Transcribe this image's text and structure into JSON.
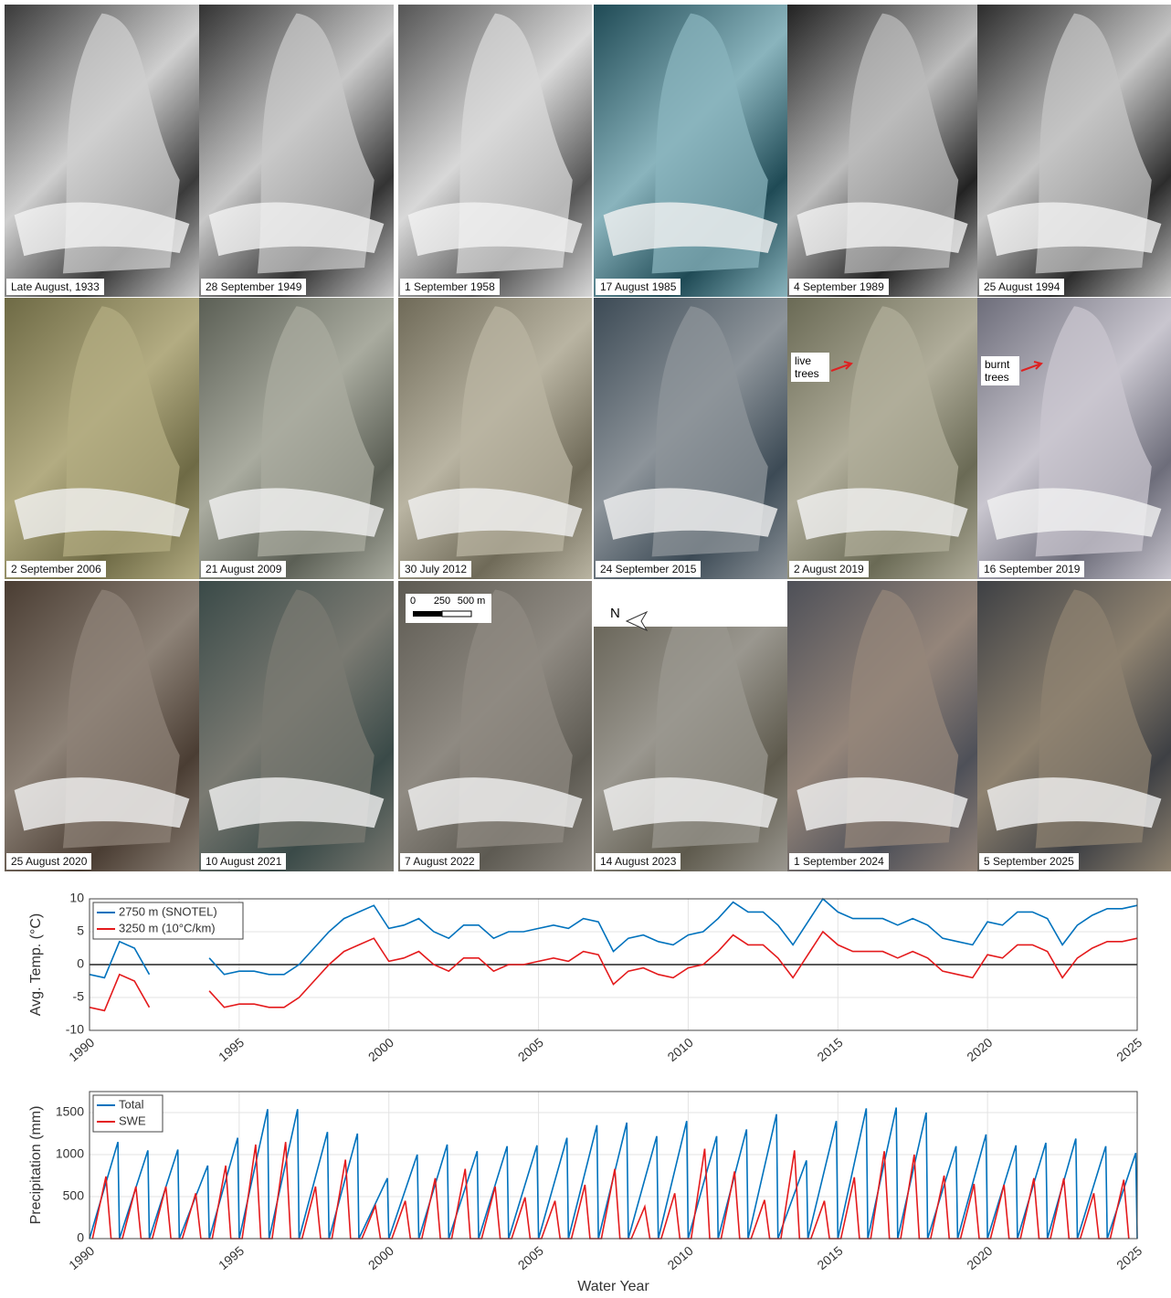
{
  "photos": [
    {
      "caption": "Late August, 1933"
    },
    {
      "caption": "28 September 1949"
    },
    {
      "caption": "1 September 1958"
    },
    {
      "caption": "17 August 1985"
    },
    {
      "caption": "4 September 1989"
    },
    {
      "caption": "25 August 1994"
    },
    {
      "caption": "2 September 2006"
    },
    {
      "caption": "21 August 2009"
    },
    {
      "caption": "30 July 2012"
    },
    {
      "caption": "24 September 2015"
    },
    {
      "caption": "2 August 2019"
    },
    {
      "caption": "16 September 2019"
    },
    {
      "caption": "25 August 2020"
    },
    {
      "caption": "10 August 2021"
    },
    {
      "caption": "7 August 2022"
    },
    {
      "caption": "14 August 2023"
    },
    {
      "caption": "1 September 2024"
    },
    {
      "caption": "5 September 2025"
    }
  ],
  "annotations": {
    "live_trees": "live trees",
    "burnt_trees": "burnt trees",
    "scale_bar": [
      "0",
      "250",
      "500 m"
    ],
    "north": "N"
  },
  "chart_data": [
    {
      "type": "line",
      "ylabel": "Avg. Temp. (°C)",
      "xlim": [
        1990,
        2025
      ],
      "xticks": [
        1990,
        1995,
        2000,
        2005,
        2010,
        2015,
        2020,
        2025
      ],
      "ylim": [
        -10,
        10
      ],
      "yticks": [
        -10,
        -5,
        0,
        5,
        10
      ],
      "grid": true,
      "legend": "upper left",
      "reference_line": 0,
      "x": [
        1990,
        1990.5,
        1991,
        1991.5,
        1992,
        1992.5,
        1993,
        1993.5,
        1994,
        1994.5,
        1995,
        1995.5,
        1996,
        1996.5,
        1997,
        1997.5,
        1998,
        1998.5,
        1999,
        1999.5,
        2000,
        2000.5,
        2001,
        2001.5,
        2002,
        2002.5,
        2003,
        2003.5,
        2004,
        2004.5,
        2005,
        2005.5,
        2006,
        2006.5,
        2007,
        2007.5,
        2008,
        2008.5,
        2009,
        2009.5,
        2010,
        2010.5,
        2011,
        2011.5,
        2012,
        2012.5,
        2013,
        2013.5,
        2014,
        2014.5,
        2015,
        2015.5,
        2016,
        2016.5,
        2017,
        2017.5,
        2018,
        2018.5,
        2019,
        2019.5,
        2020,
        2020.5,
        2021,
        2021.5,
        2022,
        2022.5,
        2023,
        2023.5,
        2024,
        2024.5,
        2025
      ],
      "series": [
        {
          "name": "2750 m (SNOTEL)",
          "color": "#0072bd",
          "values": [
            -1.5,
            -2,
            3.5,
            2.5,
            -1.5,
            null,
            null,
            null,
            1,
            -1.5,
            -1,
            -1,
            -1.5,
            -1.5,
            0,
            2.5,
            5,
            7,
            8,
            9,
            5.5,
            6,
            7,
            5,
            4,
            6,
            6,
            4,
            5,
            5,
            5.5,
            6,
            5.5,
            7,
            6.5,
            2,
            4,
            4.5,
            3.5,
            3,
            4.5,
            5,
            7,
            9.5,
            8,
            8,
            6,
            3,
            6.5,
            10,
            8,
            7,
            7,
            7,
            6,
            7,
            6,
            4,
            3.5,
            3,
            6.5,
            6,
            8,
            8,
            7,
            3,
            6,
            7.5,
            8.5,
            8.5,
            9
          ]
        },
        {
          "name": "3250 m (10°C/km)",
          "color": "#e41a1c",
          "values": [
            -6.5,
            -7,
            -1.5,
            -2.5,
            -6.5,
            null,
            null,
            null,
            -4,
            -6.5,
            -6,
            -6,
            -6.5,
            -6.5,
            -5,
            -2.5,
            0,
            2,
            3,
            4,
            0.5,
            1,
            2,
            0,
            -1,
            1,
            1,
            -1,
            0,
            0,
            0.5,
            1,
            0.5,
            2,
            1.5,
            -3,
            -1,
            -0.5,
            -1.5,
            -2,
            -0.5,
            0,
            2,
            4.5,
            3,
            3,
            1,
            -2,
            1.5,
            5,
            3,
            2,
            2,
            2,
            1,
            2,
            1,
            -1,
            -1.5,
            -2,
            1.5,
            1,
            3,
            3,
            2,
            -2,
            1,
            2.5,
            3.5,
            3.5,
            4
          ]
        }
      ]
    },
    {
      "type": "line",
      "ylabel": "Precipitation (mm)",
      "xlabel": "Water Year",
      "xlim": [
        1990,
        2025
      ],
      "xticks": [
        1990,
        1995,
        2000,
        2005,
        2010,
        2015,
        2020,
        2025
      ],
      "ylim": [
        0,
        1750
      ],
      "yticks": [
        0,
        500,
        1000,
        1500
      ],
      "grid": true,
      "legend": "upper left",
      "series": [
        {
          "name": "Total",
          "color": "#0072bd",
          "x": [
            1990,
            1990.95,
            1991,
            1991.95,
            1992,
            1992.95,
            1993,
            1993.95,
            1994,
            1994.95,
            1995,
            1995.95,
            1996,
            1996.95,
            1997,
            1997.95,
            1998,
            1998.95,
            1999,
            1999.95,
            2000,
            2000.95,
            2001,
            2001.95,
            2002,
            2002.95,
            2003,
            2003.95,
            2004,
            2004.95,
            2005,
            2005.95,
            2006,
            2006.95,
            2007,
            2007.95,
            2008,
            2008.95,
            2009,
            2009.95,
            2010,
            2010.95,
            2011,
            2011.95,
            2012,
            2012.95,
            2013,
            2013.95,
            2014,
            2014.95,
            2015,
            2015.95,
            2016,
            2016.95,
            2017,
            2017.95,
            2018,
            2018.95,
            2019,
            2019.95,
            2020,
            2020.95,
            2021,
            2021.95,
            2022,
            2022.95,
            2023,
            2023.95,
            2024,
            2024.95,
            2025
          ],
          "values": [
            0,
            1150,
            0,
            1050,
            0,
            1060,
            0,
            870,
            0,
            1200,
            0,
            1540,
            0,
            1540,
            0,
            1270,
            0,
            1250,
            0,
            720,
            0,
            1000,
            0,
            1120,
            0,
            1040,
            0,
            1100,
            0,
            1110,
            0,
            1200,
            0,
            1350,
            0,
            1380,
            0,
            1220,
            0,
            1400,
            0,
            1220,
            0,
            1300,
            0,
            1480,
            0,
            930,
            0,
            1400,
            0,
            1550,
            0,
            1560,
            0,
            1500,
            0,
            1100,
            0,
            1240,
            0,
            1110,
            0,
            1140,
            0,
            1190,
            0,
            1100,
            0,
            1020,
            0
          ]
        },
        {
          "name": "SWE",
          "color": "#e41a1c",
          "x": [
            1990.1,
            1990.55,
            1990.72,
            1991.1,
            1991.55,
            1991.72,
            1992.1,
            1992.55,
            1992.72,
            1993.1,
            1993.55,
            1993.72,
            1994.1,
            1994.55,
            1994.72,
            1995.1,
            1995.55,
            1995.72,
            1996.1,
            1996.55,
            1996.72,
            1997.1,
            1997.55,
            1997.72,
            1998.1,
            1998.55,
            1998.72,
            1999.1,
            1999.55,
            1999.72,
            2000.1,
            2000.55,
            2000.72,
            2001.1,
            2001.55,
            2001.72,
            2002.1,
            2002.55,
            2002.72,
            2003.1,
            2003.55,
            2003.72,
            2004.1,
            2004.55,
            2004.72,
            2005.1,
            2005.55,
            2005.72,
            2006.1,
            2006.55,
            2006.72,
            2007.1,
            2007.55,
            2007.72,
            2008.1,
            2008.55,
            2008.72,
            2009.1,
            2009.55,
            2009.72,
            2010.1,
            2010.55,
            2010.72,
            2011.1,
            2011.55,
            2011.72,
            2012.1,
            2012.55,
            2012.72,
            2013.1,
            2013.55,
            2013.72,
            2014.1,
            2014.55,
            2014.72,
            2015.1,
            2015.55,
            2015.72,
            2016.1,
            2016.55,
            2016.72,
            2017.1,
            2017.55,
            2017.72,
            2018.1,
            2018.55,
            2018.72,
            2019.1,
            2019.55,
            2019.72,
            2020.1,
            2020.55,
            2020.72,
            2021.1,
            2021.55,
            2021.72,
            2022.1,
            2022.55,
            2022.72,
            2023.1,
            2023.55,
            2023.72,
            2024.1,
            2024.55,
            2024.72
          ],
          "values": [
            0,
            740,
            0,
            0,
            620,
            0,
            0,
            620,
            0,
            0,
            540,
            0,
            0,
            870,
            0,
            0,
            1120,
            0,
            0,
            1150,
            0,
            0,
            620,
            0,
            0,
            940,
            0,
            0,
            390,
            0,
            0,
            450,
            0,
            0,
            720,
            0,
            0,
            830,
            0,
            0,
            620,
            0,
            0,
            490,
            0,
            0,
            450,
            0,
            0,
            640,
            0,
            0,
            830,
            0,
            0,
            380,
            0,
            0,
            540,
            0,
            0,
            1070,
            0,
            0,
            800,
            0,
            0,
            460,
            0,
            0,
            1050,
            0,
            0,
            450,
            0,
            0,
            730,
            0,
            0,
            1040,
            0,
            0,
            1000,
            0,
            0,
            750,
            0,
            0,
            650,
            0,
            0,
            640,
            0,
            0,
            720,
            0,
            0,
            720,
            0,
            0,
            540,
            0,
            0,
            700,
            0
          ]
        }
      ]
    }
  ]
}
